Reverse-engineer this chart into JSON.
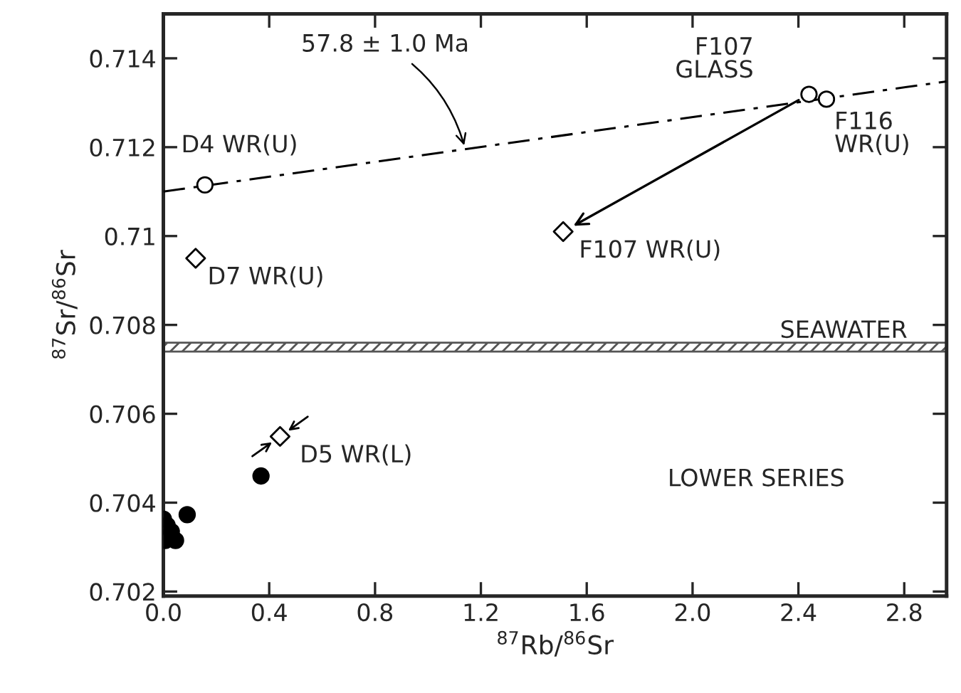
{
  "chart_data": {
    "type": "scatter",
    "xlabel": "$^{87}$Rb/$^{86}$Sr",
    "ylabel": "$^{87}$Sr/$^{86}$Sr",
    "xlim": [
      0,
      2.96
    ],
    "ylim": [
      0.7019,
      0.715
    ],
    "xticks": [
      {
        "value": 0,
        "label": "0.0"
      },
      0.4,
      0.8,
      1.2,
      1.6,
      {
        "value": 2.0,
        "label": "2.0"
      },
      2.4,
      2.8
    ],
    "yticks": [
      0.702,
      0.704,
      0.706,
      0.708,
      0.71,
      0.712,
      0.714
    ],
    "grid": false,
    "legend": false,
    "series": [
      {
        "marker": "circle",
        "color": "#ffffff",
        "x": [
          0.157,
          2.44,
          2.506
        ],
        "values": [
          0.71115,
          0.71319,
          0.71308
        ]
      },
      {
        "marker": "diamond",
        "color": "#ffffff",
        "x": [
          0.122,
          1.511,
          0.441
        ],
        "values": [
          0.7095,
          0.7101,
          0.70549
        ]
      },
      {
        "marker": "circle",
        "color": "#000000",
        "x": [
          0.369,
          0.09,
          0.0,
          0.014,
          0.03,
          0.007,
          0.046
        ],
        "values": [
          0.7046,
          0.70373,
          0.70363,
          0.70349,
          0.70335,
          0.70315,
          0.70315
        ]
      },
      {
        "type": "line",
        "line_style": "dashed",
        "color": "#000000",
        "x": [
          0.0,
          2.96
        ],
        "values": [
          0.711,
          0.71348
        ]
      }
    ],
    "bands": [
      {
        "axis": "y",
        "from": 0.7074,
        "to": 0.7076,
        "label": "SEAWATER",
        "color": "#555555"
      }
    ],
    "annotations": [
      {
        "text": "D4 WR(U)",
        "x": 0.157,
        "y": 0.71115
      },
      {
        "text": "F107\nGLASS",
        "x": 2.44,
        "y": 0.71319
      },
      {
        "text": "F116\nWR(U)",
        "x": 2.506,
        "y": 0.71308
      },
      {
        "text": "D7 WR(U)",
        "x": 0.122,
        "y": 0.7095
      },
      {
        "text": "F107 WR(U)",
        "x": 1.511,
        "y": 0.7101
      },
      {
        "text": "D5 WR(L)",
        "x": 0.441,
        "y": 0.70549
      },
      {
        "text": "57.8 ± 1.0 Ma",
        "x": 1.137,
        "y": 0.71204
      },
      "LOWER SERIES"
    ]
  }
}
